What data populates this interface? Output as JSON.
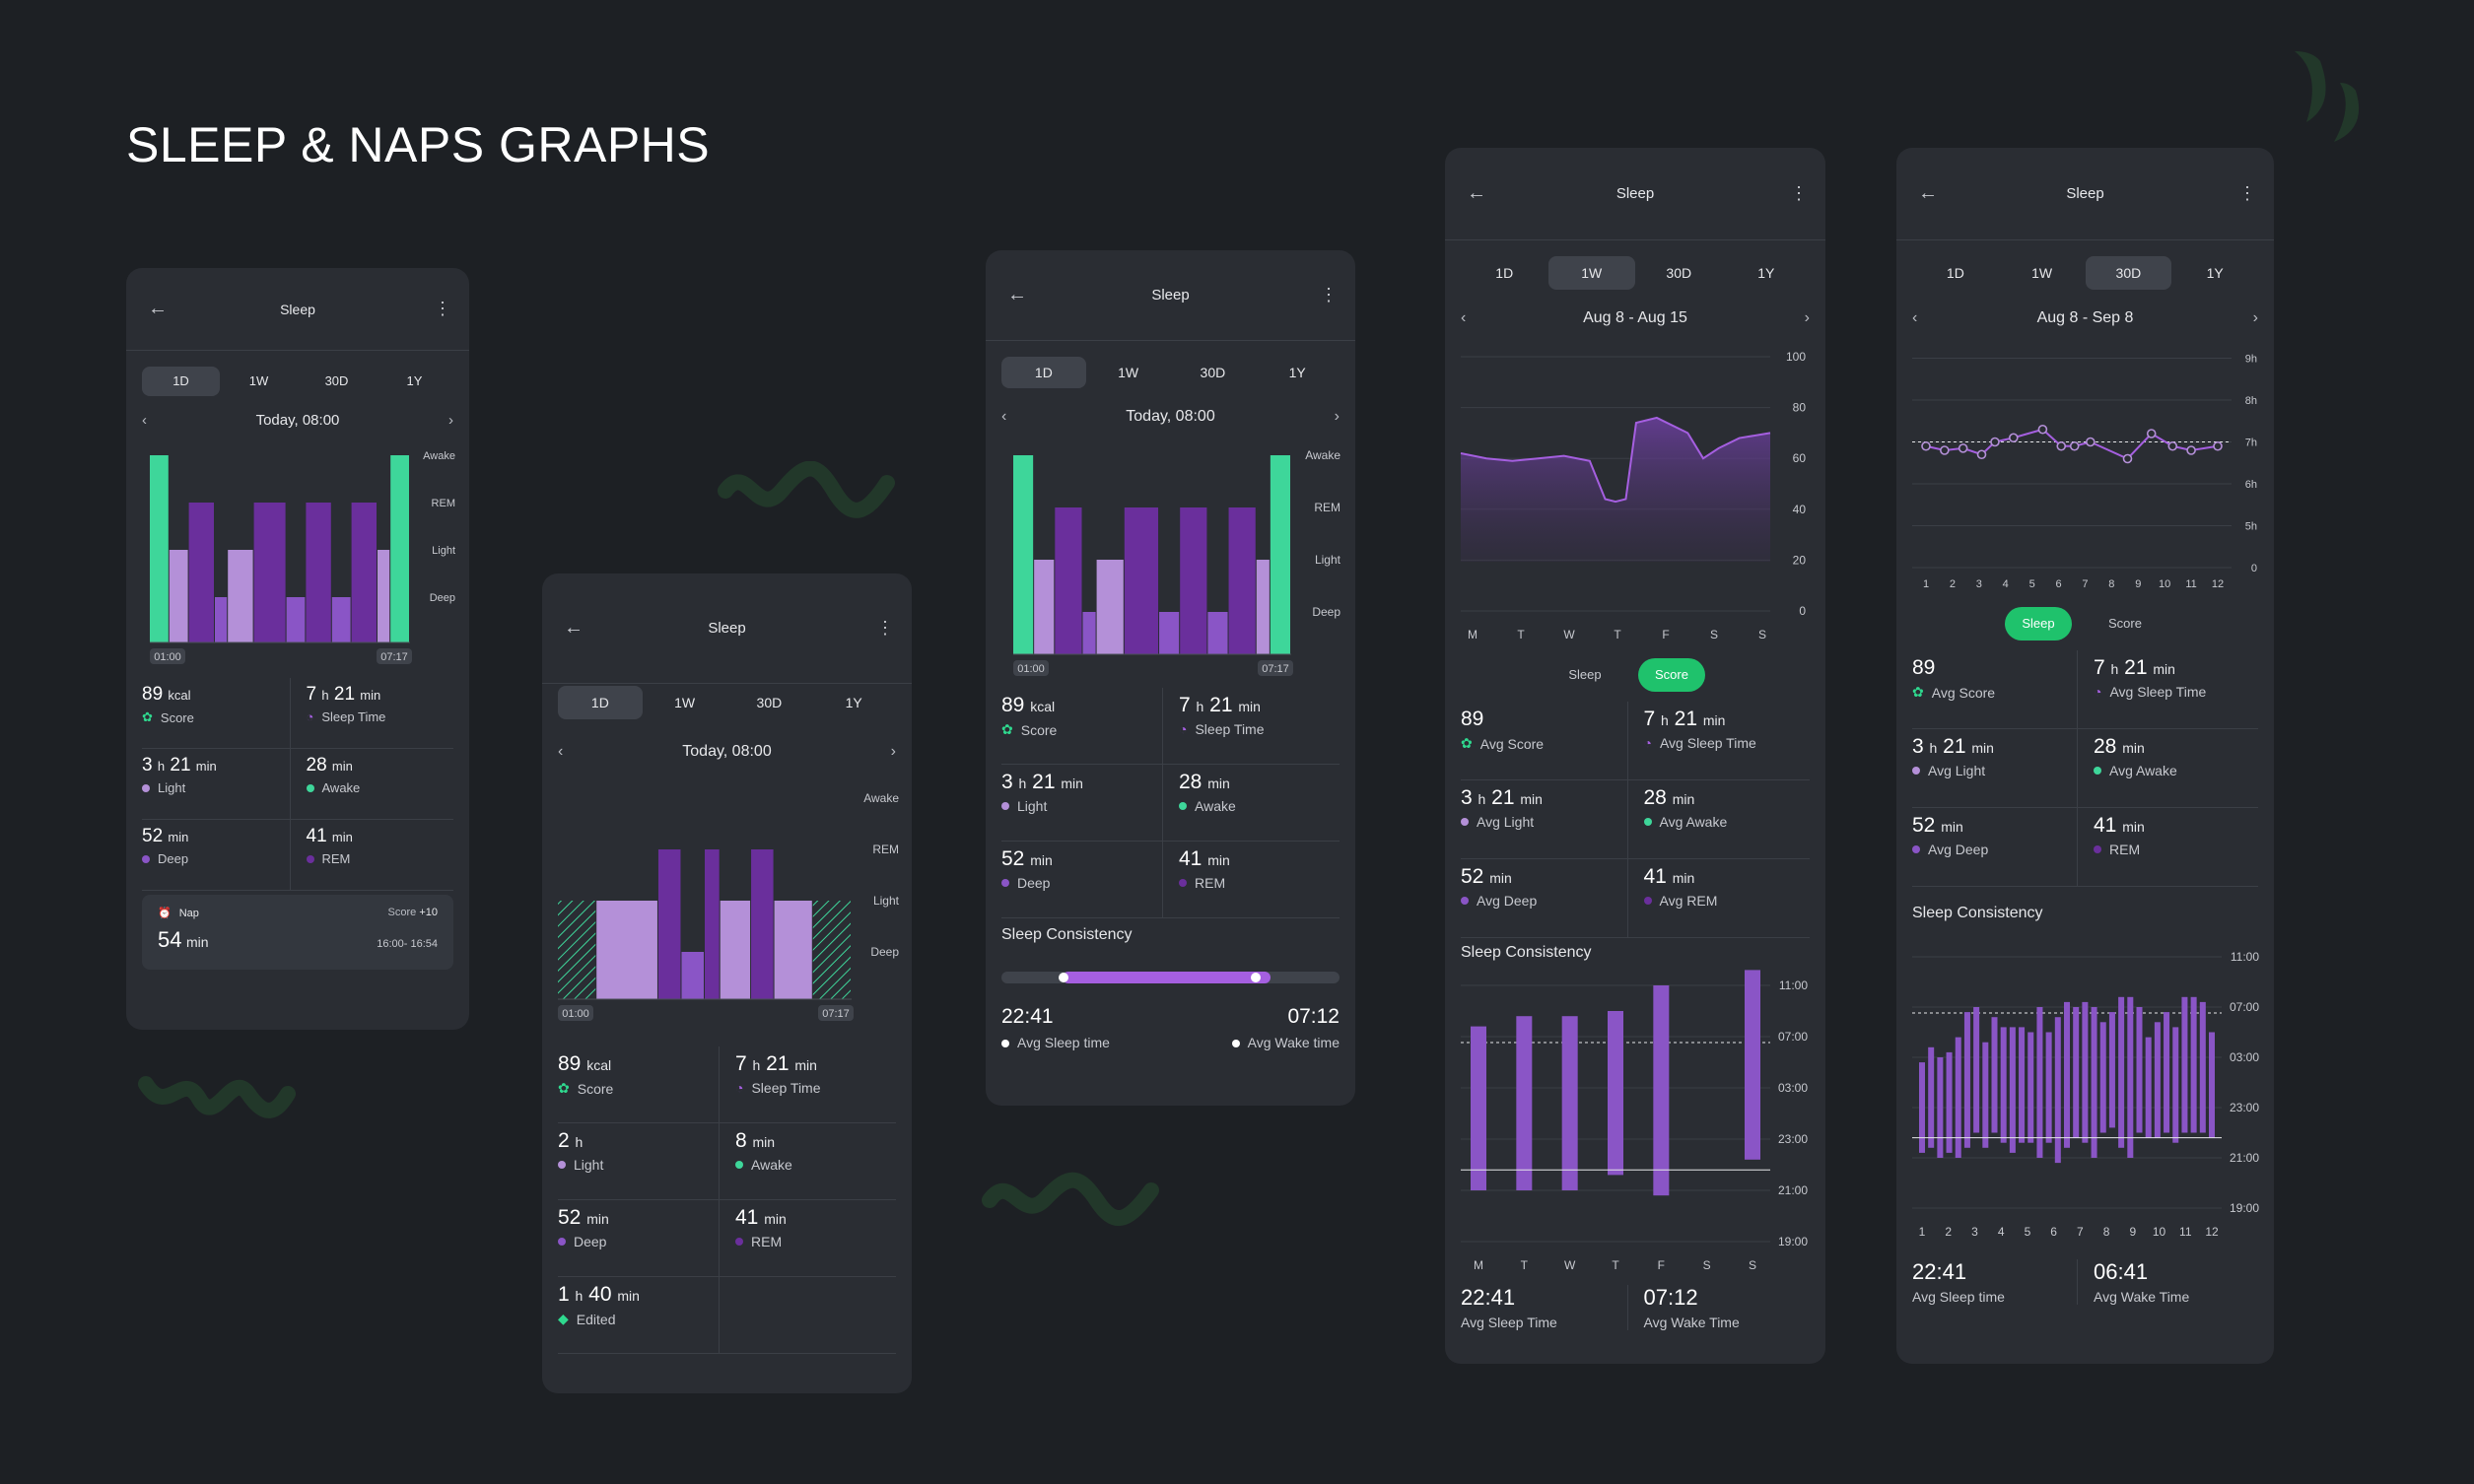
{
  "page_title": "SLEEP & NAPS GRAPHS",
  "colors": {
    "background": "#1d2024",
    "card": "#2a2d33",
    "awake": "#3ed69a",
    "rem": "#6a2f9c",
    "light": "#b490d8",
    "deep": "#8a55c6",
    "accent_green": "#1fc26c"
  },
  "common": {
    "screen_title": "Sleep",
    "back_icon": "←",
    "menu_icon": "⋮",
    "chev_left": "‹",
    "chev_right": "›",
    "tabs": [
      "1D",
      "1W",
      "30D",
      "1Y"
    ],
    "stage_labels": [
      "Awake",
      "REM",
      "Light",
      "Deep"
    ]
  },
  "s1": {
    "date": "Today, 08:00",
    "start": "01:00",
    "end": "07:17",
    "stats": [
      {
        "v": "89",
        "u": "kcal",
        "l": "Score",
        "i": "g"
      },
      {
        "v": "7",
        "u1": "h",
        "v2": "21",
        "u": "min",
        "l": "Sleep Time",
        "i": "p"
      },
      {
        "v": "3",
        "u1": "h",
        "v2": "21",
        "u": "min",
        "l": "Light",
        "i": "light"
      },
      {
        "v": "28",
        "u": "min",
        "l": "Awake",
        "i": "awake"
      },
      {
        "v": "52",
        "u": "min",
        "l": "Deep",
        "i": "deep"
      },
      {
        "v": "41",
        "u": "min",
        "l": "REM",
        "i": "rem"
      }
    ],
    "nap": {
      "label": "Nap",
      "score": "Score",
      "score_val": "+10",
      "value": "54",
      "unit": "min",
      "range": "16:00- 16:54"
    }
  },
  "s2": {
    "date": "Today, 08:00",
    "start": "01:00",
    "end": "07:17",
    "stats": [
      {
        "v": "89",
        "u": "kcal",
        "l": "Score",
        "i": "g"
      },
      {
        "v": "7",
        "u1": "h",
        "v2": "21",
        "u": "min",
        "l": "Sleep Time",
        "i": "p"
      },
      {
        "v": "2",
        "u": "h",
        "l": "Light",
        "i": "light"
      },
      {
        "v": "8",
        "u": "min",
        "l": "Awake",
        "i": "awake"
      },
      {
        "v": "52",
        "u": "min",
        "l": "Deep",
        "i": "deep"
      },
      {
        "v": "41",
        "u": "min",
        "l": "REM",
        "i": "rem"
      },
      {
        "v": "1",
        "u1": "h",
        "v2": "40",
        "u": "min",
        "l": "Edited",
        "i": "edit"
      }
    ]
  },
  "s3": {
    "date": "Today, 08:00",
    "start": "01:00",
    "end": "07:17",
    "stats": [
      {
        "v": "89",
        "u": "kcal",
        "l": "Score",
        "i": "g"
      },
      {
        "v": "7",
        "u1": "h",
        "v2": "21",
        "u": "min",
        "l": "Sleep Time",
        "i": "p"
      },
      {
        "v": "3",
        "u1": "h",
        "v2": "21",
        "u": "min",
        "l": "Light",
        "i": "light"
      },
      {
        "v": "28",
        "u": "min",
        "l": "Awake",
        "i": "awake"
      },
      {
        "v": "52",
        "u": "min",
        "l": "Deep",
        "i": "deep"
      },
      {
        "v": "41",
        "u": "min",
        "l": "REM",
        "i": "rem"
      }
    ],
    "consistency": {
      "title": "Sleep Consistency",
      "sleep": "22:41",
      "sleep_label": "Avg Sleep time",
      "wake": "07:12",
      "wake_label": "Avg Wake time"
    }
  },
  "s4": {
    "date": "Aug 8 - Aug 15",
    "toggle": [
      "Sleep",
      "Score"
    ],
    "stats": [
      {
        "v": "89",
        "l": "Avg Score",
        "i": "g"
      },
      {
        "v": "7",
        "u1": "h",
        "v2": "21",
        "u": "min",
        "l": "Avg Sleep Time",
        "i": "p"
      },
      {
        "v": "3",
        "u1": "h",
        "v2": "21",
        "u": "min",
        "l": "Avg Light",
        "i": "light"
      },
      {
        "v": "28",
        "u": "min",
        "l": "Avg Awake",
        "i": "awake"
      },
      {
        "v": "52",
        "u": "min",
        "l": "Avg Deep",
        "i": "deep"
      },
      {
        "v": "41",
        "u": "min",
        "l": "Avg REM",
        "i": "rem"
      }
    ],
    "consistency": {
      "title": "Sleep Consistency",
      "sleep": "22:41",
      "sleep_label": "Avg Sleep Time",
      "wake": "07:12",
      "wake_label": "Avg Wake Time"
    }
  },
  "s5": {
    "date": "Aug 8 - Sep 8",
    "toggle": [
      "Sleep",
      "Score"
    ],
    "stats": [
      {
        "v": "89",
        "l": "Avg Score",
        "i": "g"
      },
      {
        "v": "7",
        "u1": "h",
        "v2": "21",
        "u": "min",
        "l": "Avg Sleep Time",
        "i": "p"
      },
      {
        "v": "3",
        "u1": "h",
        "v2": "21",
        "u": "min",
        "l": "Avg Light",
        "i": "light"
      },
      {
        "v": "28",
        "u": "min",
        "l": "Avg Awake",
        "i": "awake"
      },
      {
        "v": "52",
        "u": "min",
        "l": "Avg Deep",
        "i": "deep"
      },
      {
        "v": "41",
        "u": "min",
        "l": "REM",
        "i": "rem"
      }
    ],
    "consistency": {
      "title": "Sleep Consistency",
      "sleep": "22:41",
      "sleep_label": "Avg Sleep time",
      "wake": "06:41",
      "wake_label": "Avg Wake Time"
    }
  },
  "chart_data": [
    {
      "type": "bar",
      "title": "",
      "stages": [
        "Awake",
        "REM",
        "Light",
        "Deep"
      ],
      "x_labels": [
        "01:00",
        "07:17"
      ],
      "segments": [
        [
          "Awake",
          0,
          3
        ],
        [
          "Light",
          3,
          6
        ],
        [
          "REM",
          6,
          10
        ],
        [
          "Deep",
          10,
          12
        ],
        [
          "Light",
          12,
          16
        ],
        [
          "REM",
          16,
          21
        ],
        [
          "Deep",
          21,
          24
        ],
        [
          "REM",
          24,
          28
        ],
        [
          "Deep",
          28,
          31
        ],
        [
          "REM",
          31,
          35
        ],
        [
          "Light",
          35,
          37
        ],
        [
          "Awake",
          37,
          40
        ]
      ]
    },
    {
      "type": "bar",
      "title": "",
      "stages": [
        "Awake",
        "REM",
        "Light",
        "Deep"
      ],
      "x_labels": [
        "01:00",
        "07:17"
      ],
      "segments": [
        [
          "Edited",
          0,
          5
        ],
        [
          "Light",
          5,
          13
        ],
        [
          "REM",
          13,
          16
        ],
        [
          "Deep",
          16,
          19
        ],
        [
          "REM",
          19,
          21
        ],
        [
          "Light",
          21,
          25
        ],
        [
          "REM",
          25,
          28
        ],
        [
          "Light",
          28,
          33
        ],
        [
          "Edited",
          33,
          38
        ]
      ]
    },
    {
      "type": "bar",
      "title": "",
      "stages": [
        "Awake",
        "REM",
        "Light",
        "Deep"
      ],
      "x_labels": [
        "01:00",
        "07:17"
      ],
      "segments": [
        [
          "Awake",
          0,
          3
        ],
        [
          "Light",
          3,
          6
        ],
        [
          "REM",
          6,
          10
        ],
        [
          "Deep",
          10,
          12
        ],
        [
          "Light",
          12,
          16
        ],
        [
          "REM",
          16,
          21
        ],
        [
          "Deep",
          21,
          24
        ],
        [
          "REM",
          24,
          28
        ],
        [
          "Deep",
          28,
          31
        ],
        [
          "REM",
          31,
          35
        ],
        [
          "Light",
          35,
          37
        ],
        [
          "Awake",
          37,
          40
        ]
      ]
    },
    {
      "type": "area",
      "title": "",
      "x": [
        "M",
        "T",
        "W",
        "T",
        "F",
        "S",
        "S"
      ],
      "ylim": [
        0,
        100
      ],
      "yticks": [
        0,
        20,
        40,
        60,
        80,
        100
      ],
      "points": [
        [
          0,
          62
        ],
        [
          0.5,
          60
        ],
        [
          1,
          59
        ],
        [
          1.5,
          60
        ],
        [
          2,
          61
        ],
        [
          2.5,
          59
        ],
        [
          2.8,
          44
        ],
        [
          3,
          43
        ],
        [
          3.2,
          44
        ],
        [
          3.4,
          74
        ],
        [
          3.6,
          75
        ],
        [
          3.8,
          76
        ],
        [
          4.4,
          70
        ],
        [
          4.7,
          60
        ],
        [
          5,
          64
        ],
        [
          5.4,
          68
        ],
        [
          6,
          70
        ]
      ]
    },
    {
      "type": "line",
      "title": "",
      "x": [
        1,
        2,
        3,
        4,
        5,
        6,
        7,
        8,
        9,
        10,
        11,
        12
      ],
      "ylabels": [
        "0",
        "5h",
        "6h",
        "7h",
        "8h",
        "9h"
      ],
      "ylim": [
        0,
        9
      ],
      "reference": 7,
      "points": [
        [
          1,
          6.9
        ],
        [
          1.7,
          6.8
        ],
        [
          2.4,
          6.85
        ],
        [
          3.1,
          6.7
        ],
        [
          3.6,
          7.0
        ],
        [
          4.3,
          7.1
        ],
        [
          5.4,
          7.3
        ],
        [
          6.1,
          6.9
        ],
        [
          6.6,
          6.9
        ],
        [
          7.2,
          7.0
        ],
        [
          8.6,
          6.6
        ],
        [
          9.5,
          7.2
        ],
        [
          10.3,
          6.9
        ],
        [
          11,
          6.8
        ],
        [
          12,
          6.9
        ]
      ]
    },
    {
      "type": "bar",
      "title": "",
      "x": [
        "M",
        "T",
        "W",
        "T",
        "F",
        "S",
        "S"
      ],
      "ylabels": [
        "19:00",
        "21:00",
        "23:00",
        "03:00",
        "07:00",
        "11:00"
      ],
      "ranges": [
        [
          1,
          4.2
        ],
        [
          1,
          4.4
        ],
        [
          1,
          4.4
        ],
        [
          1.3,
          4.5
        ],
        [
          0.9,
          5.0
        ],
        [
          null,
          null
        ],
        [
          1.6,
          5.3
        ]
      ]
    },
    {
      "type": "bar",
      "title": "",
      "x": [
        1,
        2,
        3,
        4,
        5,
        6,
        7,
        8,
        9,
        10,
        11,
        12
      ],
      "ylabels": [
        "19:00",
        "21:00",
        "23:00",
        "03:00",
        "07:00",
        "11:00"
      ],
      "ranges": [
        [
          1.1,
          2.9
        ],
        [
          1.2,
          3.2
        ],
        [
          1.0,
          3.0
        ],
        [
          1.1,
          3.1
        ],
        [
          1.0,
          3.4
        ],
        [
          1.2,
          3.9
        ],
        [
          1.5,
          4.0
        ],
        [
          1.2,
          3.3
        ],
        [
          1.5,
          3.8
        ],
        [
          1.3,
          3.6
        ],
        [
          1.1,
          3.6
        ],
        [
          1.3,
          3.6
        ],
        [
          1.3,
          3.5
        ],
        [
          1.0,
          4.0
        ],
        [
          1.3,
          3.5
        ],
        [
          0.9,
          3.8
        ],
        [
          1.2,
          4.1
        ],
        [
          1.4,
          4.0
        ],
        [
          1.3,
          4.1
        ],
        [
          1.0,
          4.0
        ],
        [
          1.5,
          3.7
        ],
        [
          1.6,
          3.9
        ],
        [
          1.2,
          4.2
        ],
        [
          1.0,
          4.2
        ],
        [
          1.5,
          4.0
        ],
        [
          1.4,
          3.4
        ],
        [
          1.4,
          3.7
        ],
        [
          1.5,
          3.9
        ],
        [
          1.3,
          3.6
        ],
        [
          1.5,
          4.2
        ],
        [
          1.5,
          4.2
        ],
        [
          1.5,
          4.1
        ],
        [
          1.4,
          3.5
        ]
      ]
    }
  ]
}
